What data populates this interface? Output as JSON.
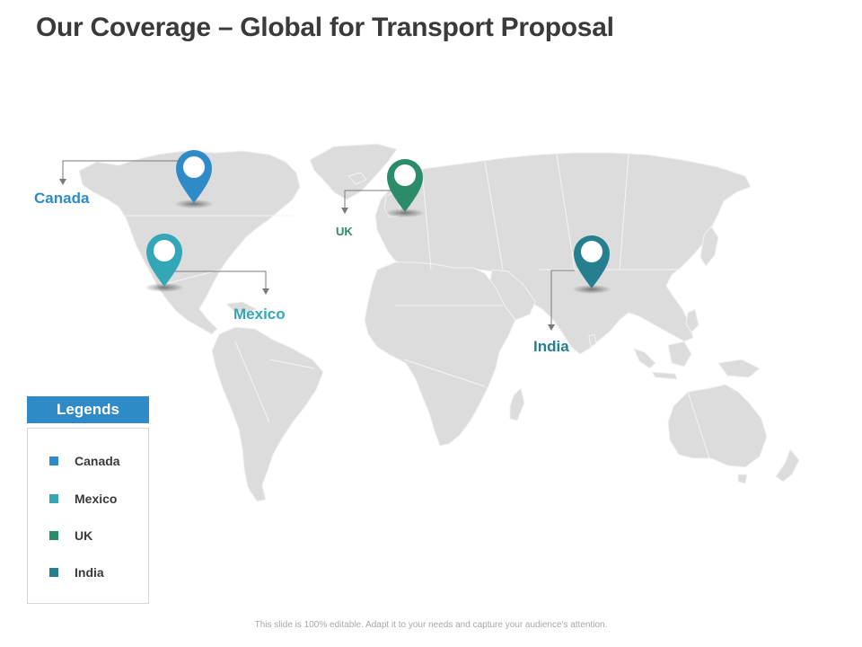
{
  "title": "Our Coverage – Global for Transport Proposal",
  "locations": [
    {
      "name": "Canada",
      "color": "#2e8bc7",
      "icon": "map-pin-icon"
    },
    {
      "name": "Mexico",
      "color": "#33a6b8",
      "icon": "map-pin-icon"
    },
    {
      "name": "UK",
      "color": "#2b8c6a",
      "icon": "map-pin-icon"
    },
    {
      "name": "India",
      "color": "#257f8f",
      "icon": "map-pin-icon"
    }
  ],
  "legend": {
    "title": "Legends",
    "items": [
      {
        "label": "Canada",
        "color": "#2e8bc7"
      },
      {
        "label": "Mexico",
        "color": "#33a6b8"
      },
      {
        "label": "UK",
        "color": "#2b8c6a"
      },
      {
        "label": "India",
        "color": "#257f8f"
      }
    ]
  },
  "footer": "This slide is 100% editable. Adapt it to your needs and capture your audience's attention.",
  "colors": {
    "land": "#dcdcdc",
    "borders": "#f4f4f4",
    "connector": "#7a7a7a",
    "title": "#3a3a3a"
  }
}
